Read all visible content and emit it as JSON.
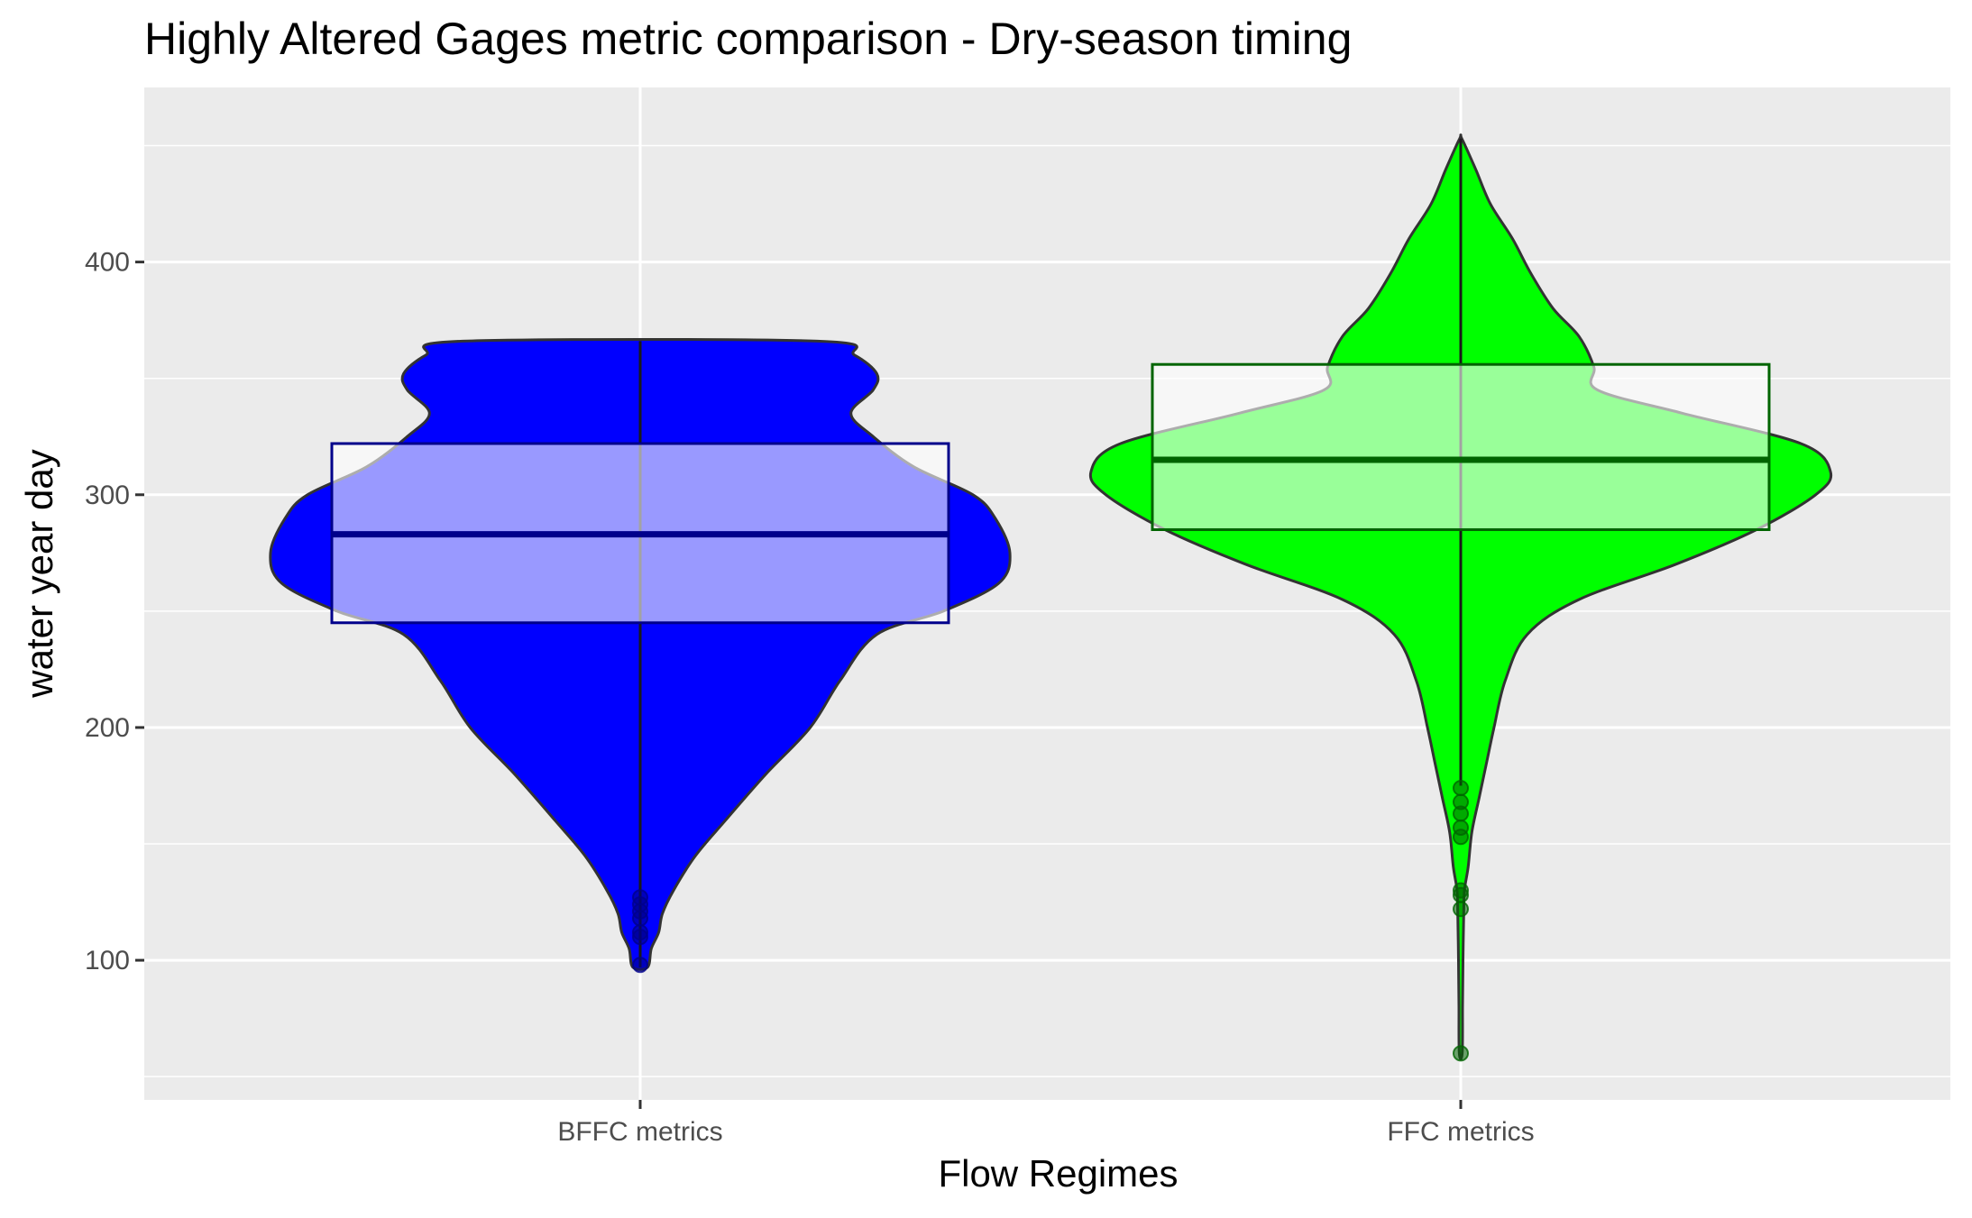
{
  "chart_data": {
    "type": "violin",
    "title": "Highly Altered Gages metric comparison - Dry-season timing",
    "xlabel": "Flow Regimes",
    "ylabel": "water year day",
    "ylim": [
      40,
      475
    ],
    "yticks": [
      100,
      200,
      300,
      400
    ],
    "categories": [
      "BFFC metrics",
      "FFC metrics"
    ],
    "grid": true,
    "legend": "none",
    "series": [
      {
        "category": "BFFC metrics",
        "fill": "#0000ff",
        "box_color": "#00008b",
        "box_fill": "#9999ff",
        "box": {
          "q1": 245,
          "median": 283,
          "q3": 322
        },
        "whisker": [
          97,
          366
        ],
        "violin_range": [
          97,
          366
        ],
        "density_profile": [
          [
            97,
            0.02
          ],
          [
            105,
            0.03
          ],
          [
            112,
            0.05
          ],
          [
            120,
            0.06
          ],
          [
            130,
            0.09
          ],
          [
            145,
            0.15
          ],
          [
            160,
            0.23
          ],
          [
            180,
            0.34
          ],
          [
            200,
            0.46
          ],
          [
            220,
            0.54
          ],
          [
            240,
            0.64
          ],
          [
            250,
            0.82
          ],
          [
            262,
            0.97
          ],
          [
            275,
            1.0
          ],
          [
            290,
            0.96
          ],
          [
            300,
            0.9
          ],
          [
            312,
            0.74
          ],
          [
            325,
            0.63
          ],
          [
            335,
            0.57
          ],
          [
            345,
            0.63
          ],
          [
            352,
            0.64
          ],
          [
            360,
            0.58
          ],
          [
            366,
            0.48
          ]
        ],
        "outliers": [
          98,
          110,
          112,
          118,
          121,
          124,
          127
        ]
      },
      {
        "category": "FFC metrics",
        "fill": "#00ff00",
        "box_color": "#006400",
        "box_fill": "#99ff99",
        "box": {
          "q1": 285,
          "median": 315,
          "q3": 356
        },
        "whisker": [
          175,
          453
        ],
        "violin_range": [
          60,
          453
        ],
        "density_profile": [
          [
            60,
            0.004
          ],
          [
            80,
            0.005
          ],
          [
            100,
            0.006
          ],
          [
            120,
            0.008
          ],
          [
            130,
            0.01
          ],
          [
            140,
            0.02
          ],
          [
            155,
            0.03
          ],
          [
            170,
            0.05
          ],
          [
            185,
            0.07
          ],
          [
            200,
            0.09
          ],
          [
            220,
            0.12
          ],
          [
            240,
            0.18
          ],
          [
            255,
            0.32
          ],
          [
            270,
            0.58
          ],
          [
            285,
            0.8
          ],
          [
            300,
            0.96
          ],
          [
            310,
            1.0
          ],
          [
            322,
            0.92
          ],
          [
            335,
            0.6
          ],
          [
            345,
            0.37
          ],
          [
            355,
            0.36
          ],
          [
            368,
            0.32
          ],
          [
            380,
            0.25
          ],
          [
            395,
            0.19
          ],
          [
            410,
            0.14
          ],
          [
            425,
            0.08
          ],
          [
            440,
            0.04
          ],
          [
            453,
            0.003
          ]
        ],
        "outliers": [
          60,
          122,
          128,
          130,
          153,
          157,
          163,
          168,
          174
        ]
      }
    ]
  }
}
